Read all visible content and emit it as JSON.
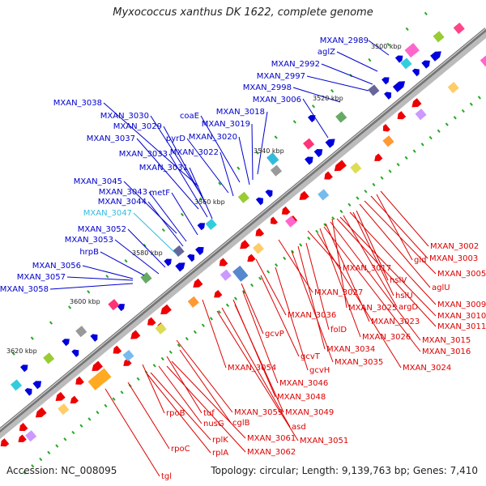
{
  "title": "Myxococcus xanthus DK 1622, complete genome",
  "accession": "Accession: NC_008095",
  "summary": "Topology: circular; Length: 9,139,763 bp; Genes: 7,410",
  "colors": {
    "forward_label": "#0000cc",
    "highlight_label": "#33bbdd",
    "reverse_label": "#dd0000",
    "forward_feature": "#0000dd",
    "reverse_feature": "#ee0000",
    "backbone": "#888888",
    "tick_marks": "#22aa22"
  },
  "ticks": [
    {
      "label": "3500 kbp"
    },
    {
      "label": "3520 kbp"
    },
    {
      "label": "3540 kbp"
    },
    {
      "label": "3560 kbp"
    },
    {
      "label": "3580 kbp"
    },
    {
      "label": "3600 kbp"
    },
    {
      "label": "3620 kbp"
    }
  ],
  "forward_labels": [
    "MXAN_2989",
    "aglZ",
    "MXAN_2992",
    "MXAN_2997",
    "MXAN_2998",
    "MXAN_3006",
    "MXAN_3038",
    "MXAN_3018",
    "coaE",
    "MXAN_3030",
    "MXAN_3019",
    "MXAN_3029",
    "pyrD",
    "MXAN_3020",
    "MXAN_3037",
    "MXAN_3022",
    "MXAN_3033",
    "MXAN_3031",
    "MXAN_3045",
    "MXAN_3043",
    "metF",
    "MXAN_3044",
    "MXAN_3047",
    "MXAN_3052",
    "MXAN_3053",
    "hrpB",
    "MXAN_3056",
    "MXAN_3057",
    "MXAN_3058"
  ],
  "reverse_labels": [
    "MXAN_3002",
    "gid",
    "MXAN_3003",
    "MXAN_3005",
    "aglU",
    "MXAN_3017",
    "hslV",
    "hslU",
    "MXAN_3009",
    "MXAN_3027",
    "argD",
    "MXAN_3010",
    "MXAN_3025",
    "MXAN_3011",
    "MXAN_3023",
    "MXAN_3015",
    "MXAN_3036",
    "folD",
    "MXAN_3026",
    "MXAN_3016",
    "gcvP",
    "MXAN_3034",
    "gcvT",
    "MXAN_3035",
    "MXAN_3024",
    "gcvH",
    "MXAN_3054",
    "MXAN_3046",
    "MXAN_3048",
    "MXAN_3059",
    "MXAN_3049",
    "tuf",
    "cglB",
    "rpoB",
    "nusG",
    "asd",
    "MXAN_3051",
    "MXAN_3061",
    "rplK",
    "rplA",
    "MXAN_3062",
    "rpoC",
    "tgl"
  ]
}
